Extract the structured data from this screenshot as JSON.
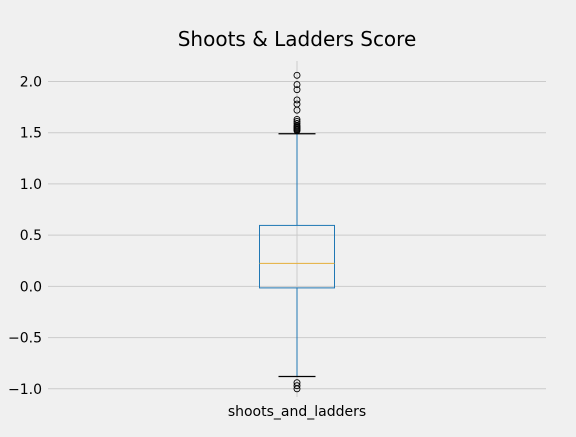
{
  "chart_data": {
    "type": "boxplot",
    "title": "Shoots & Ladders Score",
    "categories": [
      "shoots_and_ladders"
    ],
    "ylim": [
      -1.08,
      2.2
    ],
    "yticks": [
      2.0,
      1.5,
      1.0,
      0.5,
      0.0,
      -0.5,
      -1.0
    ],
    "ytick_labels": [
      "2.0",
      "1.5",
      "1.0",
      "0.5",
      "0.0",
      "−0.5",
      "−1.0"
    ],
    "grid": true,
    "colors": {
      "box": "#1f77b4",
      "median": "#e5ae38",
      "cap": "#000000",
      "grid": "#cbcbcb",
      "background": "#f0f0f0"
    },
    "boxes": [
      {
        "name": "shoots_and_ladders",
        "whisker_low": -0.88,
        "q1": -0.015,
        "median": 0.225,
        "q3": 0.595,
        "whisker_high": 1.49,
        "fliers": [
          2.06,
          1.97,
          1.92,
          1.82,
          1.78,
          1.72,
          1.63,
          1.61,
          1.59,
          1.57,
          1.56,
          1.55,
          1.54,
          1.53,
          1.52,
          -0.94,
          -0.97,
          -1.0
        ]
      }
    ]
  }
}
